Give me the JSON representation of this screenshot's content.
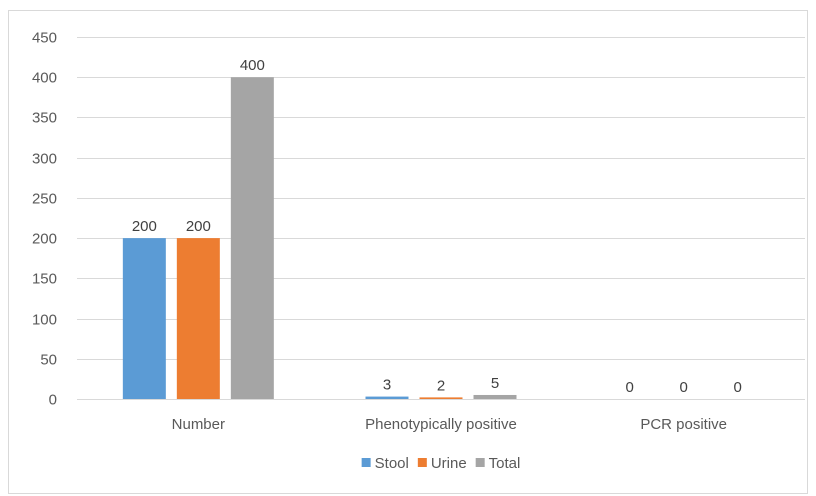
{
  "chart_data": {
    "type": "bar",
    "categories": [
      "Number",
      "Phenotypically positive",
      "PCR positive"
    ],
    "series": [
      {
        "name": "Stool",
        "values": [
          200,
          3,
          0
        ],
        "color": "#5b9bd5"
      },
      {
        "name": "Urine",
        "values": [
          200,
          2,
          0
        ],
        "color": "#ed7d31"
      },
      {
        "name": "Total",
        "values": [
          400,
          5,
          0
        ],
        "color": "#a5a5a5"
      }
    ],
    "ylim": [
      0,
      450
    ],
    "yticks": [
      0,
      50,
      100,
      150,
      200,
      250,
      300,
      350,
      400,
      450
    ],
    "grid": true,
    "legend_position": "bottom",
    "data_labels": true,
    "title": "",
    "xlabel": "",
    "ylabel": ""
  }
}
